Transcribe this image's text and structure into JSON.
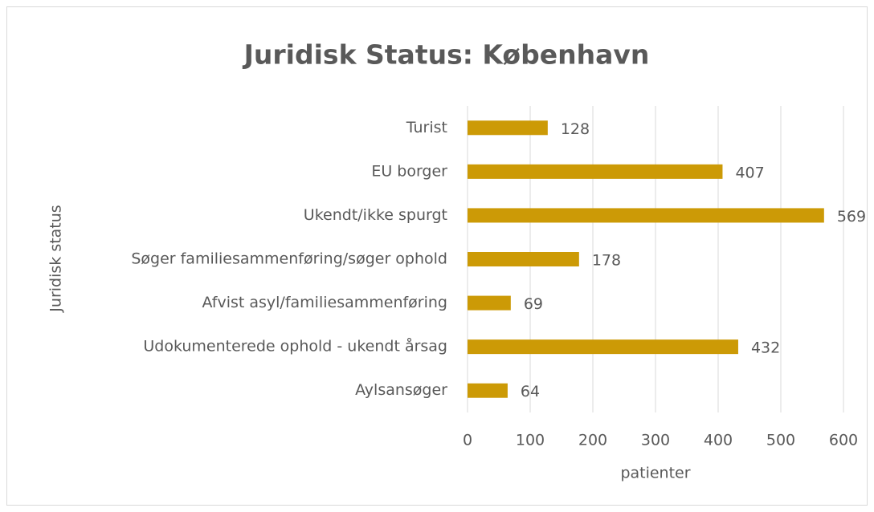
{
  "chart_data": {
    "type": "barh",
    "title": "Juridisk Status: København",
    "xlabel": "patienter",
    "ylabel": "Juridisk status",
    "categories": [
      "Turist",
      "EU borger",
      "Ukendt/ikke spurgt",
      "Søger familiesammenføring/søger ophold",
      "Afvist asyl/familiesammenføring",
      "Udokumenterede ophold - ukendt årsag",
      "Aylsansøger"
    ],
    "values": [
      128,
      407,
      569,
      178,
      69,
      432,
      64
    ],
    "color": "#cc9a06",
    "xlim": [
      0,
      600
    ],
    "xticks": [
      0,
      100,
      200,
      300,
      400,
      500,
      600
    ],
    "grid": true
  }
}
